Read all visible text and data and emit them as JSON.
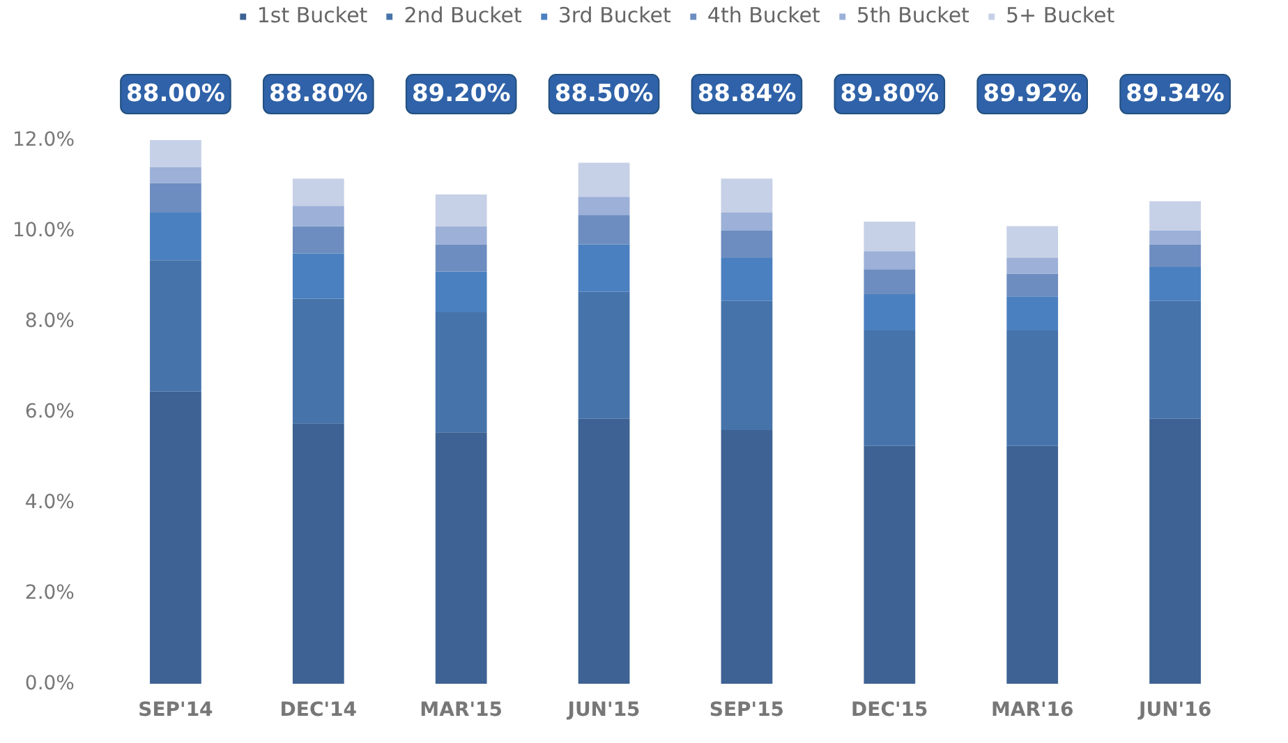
{
  "chart_data": {
    "type": "bar",
    "stacked": true,
    "categories": [
      "SEP'14",
      "DEC'14",
      "MAR'15",
      "JUN'15",
      "SEP'15",
      "DEC'15",
      "MAR'16",
      "JUN'16"
    ],
    "series": [
      {
        "name": "1st Bucket",
        "color": "#3d6293",
        "values": [
          6.45,
          5.75,
          5.55,
          5.85,
          5.6,
          5.25,
          5.25,
          5.85
        ]
      },
      {
        "name": "2nd Bucket",
        "color": "#4673aa",
        "values": [
          2.9,
          2.75,
          2.65,
          2.8,
          2.85,
          2.55,
          2.55,
          2.6
        ]
      },
      {
        "name": "3rd Bucket",
        "color": "#4b80c0",
        "values": [
          1.05,
          1.0,
          0.9,
          1.05,
          0.95,
          0.8,
          0.75,
          0.75
        ]
      },
      {
        "name": "4th Bucket",
        "color": "#6d8dc0",
        "values": [
          0.65,
          0.6,
          0.6,
          0.65,
          0.6,
          0.55,
          0.5,
          0.5
        ]
      },
      {
        "name": "5th Bucket",
        "color": "#9cb0d8",
        "values": [
          0.35,
          0.45,
          0.4,
          0.4,
          0.4,
          0.4,
          0.35,
          0.3
        ]
      },
      {
        "name": "5+ Bucket",
        "color": "#c6d0e6",
        "values": [
          0.6,
          0.6,
          0.7,
          0.75,
          0.75,
          0.65,
          0.7,
          0.65
        ]
      }
    ],
    "ylim": [
      0,
      12
    ],
    "yticks": [
      {
        "value": 0,
        "label": "0.0%"
      },
      {
        "value": 2,
        "label": "2.0%"
      },
      {
        "value": 4,
        "label": "4.0%"
      },
      {
        "value": 6,
        "label": "6.0%"
      },
      {
        "value": 8,
        "label": "8.0%"
      },
      {
        "value": 10,
        "label": "10.0%"
      },
      {
        "value": 12,
        "label": "12.0%"
      }
    ],
    "annotations": [
      "88.00%",
      "88.80%",
      "89.20%",
      "88.50%",
      "88.84%",
      "89.80%",
      "89.92%",
      "89.34%"
    ],
    "grid": false,
    "legend": "top"
  }
}
